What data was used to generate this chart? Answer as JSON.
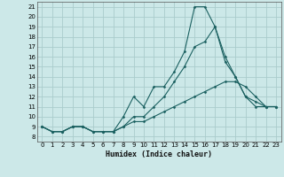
{
  "xlabel": "Humidex (Indice chaleur)",
  "background_color": "#cce8e8",
  "grid_color": "#aacccc",
  "line_color": "#1a6060",
  "xlim": [
    -0.5,
    23.5
  ],
  "ylim": [
    7.5,
    21.5
  ],
  "xticks": [
    0,
    1,
    2,
    3,
    4,
    5,
    6,
    7,
    8,
    9,
    10,
    11,
    12,
    13,
    14,
    15,
    16,
    17,
    18,
    19,
    20,
    21,
    22,
    23
  ],
  "yticks": [
    8,
    9,
    10,
    11,
    12,
    13,
    14,
    15,
    16,
    17,
    18,
    19,
    20,
    21
  ],
  "series": [
    {
      "x": [
        0,
        1,
        2,
        3,
        4,
        5,
        6,
        7,
        8,
        9,
        10,
        11,
        12,
        13,
        14,
        15,
        16,
        17,
        18,
        19,
        20,
        21,
        22,
        23
      ],
      "y": [
        9,
        8.5,
        8.5,
        9,
        9,
        8.5,
        8.5,
        8.5,
        10,
        12,
        11,
        13,
        13,
        14.5,
        16.5,
        21,
        21,
        19,
        15.5,
        14,
        12,
        11.5,
        11,
        11
      ]
    },
    {
      "x": [
        0,
        1,
        2,
        3,
        4,
        5,
        6,
        7,
        8,
        9,
        10,
        11,
        12,
        13,
        14,
        15,
        16,
        17,
        18,
        19,
        20,
        21,
        22,
        23
      ],
      "y": [
        9,
        8.5,
        8.5,
        9,
        9,
        8.5,
        8.5,
        8.5,
        9,
        10,
        10,
        11,
        12,
        13.5,
        15,
        17,
        17.5,
        19,
        16,
        14,
        12,
        11,
        11,
        11
      ]
    },
    {
      "x": [
        0,
        1,
        2,
        3,
        4,
        5,
        6,
        7,
        8,
        9,
        10,
        11,
        12,
        13,
        14,
        15,
        16,
        17,
        18,
        19,
        20,
        21,
        22,
        23
      ],
      "y": [
        9,
        8.5,
        8.5,
        9,
        9,
        8.5,
        8.5,
        8.5,
        9,
        9.5,
        9.5,
        10,
        10.5,
        11,
        11.5,
        12,
        12.5,
        13,
        13.5,
        13.5,
        13,
        12,
        11,
        11
      ]
    }
  ]
}
